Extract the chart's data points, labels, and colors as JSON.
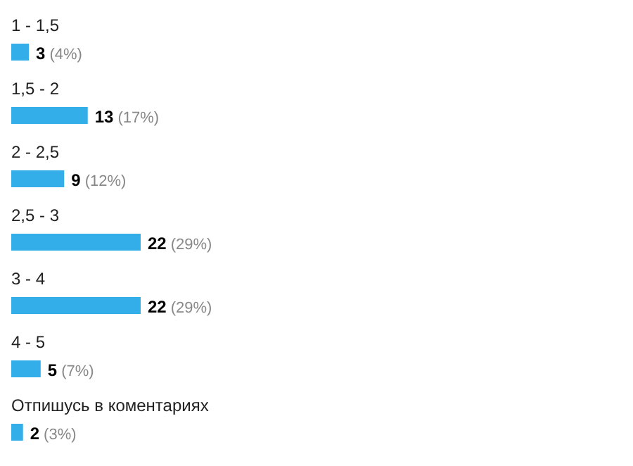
{
  "chart_data": {
    "type": "bar",
    "orientation": "horizontal",
    "categories": [
      "1 - 1,5",
      "1,5 - 2",
      "2 - 2,5",
      "2,5 - 3",
      "3 - 4",
      "4 - 5",
      "Отпишусь в коментариях"
    ],
    "values": [
      3,
      13,
      9,
      22,
      22,
      5,
      2
    ],
    "color": "#34aee8",
    "value_labels": [
      "3 (4%)",
      "13 (17%)",
      "9 (12%)",
      "22 (29%)",
      "22 (29%)",
      "5 (7%)",
      "2 (3%)"
    ]
  }
}
